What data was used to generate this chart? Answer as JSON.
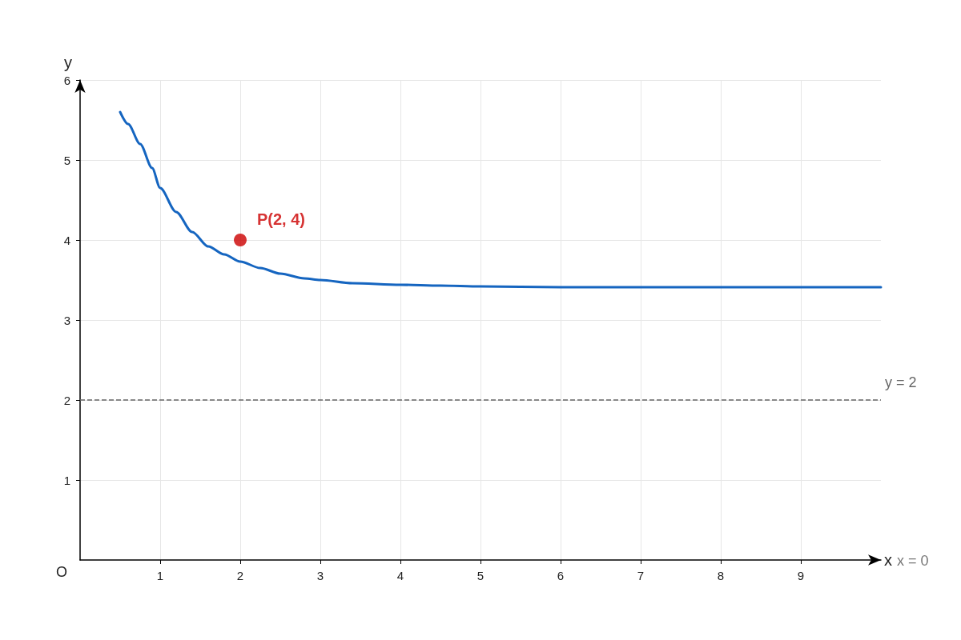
{
  "chart_data": {
    "type": "line",
    "xlabel": "x",
    "ylabel": "y",
    "xlim": [
      0,
      10
    ],
    "ylim": [
      0,
      6
    ],
    "xticks": [
      1,
      2,
      3,
      4,
      5,
      6,
      7,
      8,
      9
    ],
    "yticks": [
      1,
      2,
      3,
      4,
      5,
      6
    ],
    "grid": true,
    "series": [
      {
        "color": "#1565c0",
        "marker": "none",
        "line_style": "solid",
        "x": [
          0.5,
          0.6,
          0.75,
          0.9,
          1.0,
          1.2,
          1.4,
          1.6,
          1.8,
          2.0,
          2.25,
          2.5,
          2.8,
          3.0,
          3.4,
          4.0,
          4.5,
          5.0,
          6.0,
          7.0,
          8.0,
          9.0,
          10.0
        ],
        "values": [
          5.6,
          5.45,
          5.2,
          4.9,
          4.65,
          4.35,
          4.1,
          3.92,
          3.82,
          3.73,
          3.65,
          3.58,
          3.52,
          3.5,
          3.46,
          3.44,
          3.43,
          3.42,
          3.41,
          3.41,
          3.41,
          3.41,
          3.41
        ]
      },
      {
        "type": "scatter",
        "color": "#cc0000",
        "marker": "circle",
        "x": [
          2
        ],
        "values": [
          4
        ],
        "value_labels": [
          "P(2, 4)"
        ]
      }
    ],
    "ref_lines": [
      {
        "axis": "y",
        "value": 2,
        "label": "y = 2",
        "color": "#666666",
        "line_style": "dashed"
      }
    ],
    "annotations": [
      "O",
      "x = 0"
    ]
  }
}
